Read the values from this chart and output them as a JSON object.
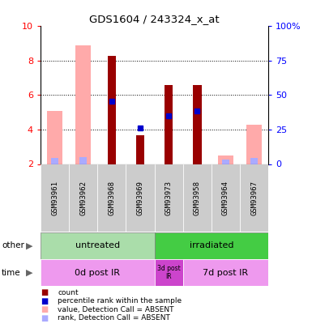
{
  "title": "GDS1604 / 243324_x_at",
  "samples": [
    "GSM93961",
    "GSM93962",
    "GSM93968",
    "GSM93969",
    "GSM93973",
    "GSM93958",
    "GSM93964",
    "GSM93967"
  ],
  "ylim_left": [
    2,
    10
  ],
  "ylim_right": [
    0,
    100
  ],
  "yticks_left": [
    2,
    4,
    6,
    8,
    10
  ],
  "yticks_right": [
    0,
    25,
    50,
    75,
    100
  ],
  "ytick_labels_right": [
    "0",
    "25",
    "50",
    "75",
    "100%"
  ],
  "ytick_labels_left": [
    "2",
    "4",
    "6",
    "8",
    "10"
  ],
  "count_values": [
    null,
    null,
    8.3,
    3.65,
    6.6,
    6.6,
    null,
    null
  ],
  "rank_values": [
    null,
    null,
    5.65,
    null,
    4.8,
    5.1,
    null,
    null
  ],
  "absent_value": [
    5.1,
    8.9,
    null,
    null,
    null,
    null,
    2.5,
    4.3
  ],
  "absent_rank": [
    4.3,
    5.25,
    null,
    null,
    null,
    null,
    3.2,
    4.3
  ],
  "rank_absent_values": [
    null,
    null,
    null,
    4.1,
    null,
    null,
    null,
    null
  ],
  "color_count": "#990000",
  "color_rank": "#0000cc",
  "color_absent_value": "#ffaaaa",
  "color_absent_rank": "#aaaaff",
  "grid_lines": [
    4,
    6,
    8
  ],
  "other_untreated": "untreated",
  "other_irradiated": "irradiated",
  "time_0d": "0d post IR",
  "time_3d": "3d post\nIR",
  "time_7d": "7d post IR",
  "bg_color": "#cccccc",
  "untreated_color": "#aaddaa",
  "irradiated_color": "#44cc44",
  "time_0d_color": "#ee99ee",
  "time_3d_color": "#cc44cc",
  "time_7d_color": "#ee99ee",
  "legend_items": [
    "count",
    "percentile rank within the sample",
    "value, Detection Call = ABSENT",
    "rank, Detection Call = ABSENT"
  ],
  "legend_colors": [
    "#990000",
    "#0000cc",
    "#ffaaaa",
    "#aaaaff"
  ]
}
